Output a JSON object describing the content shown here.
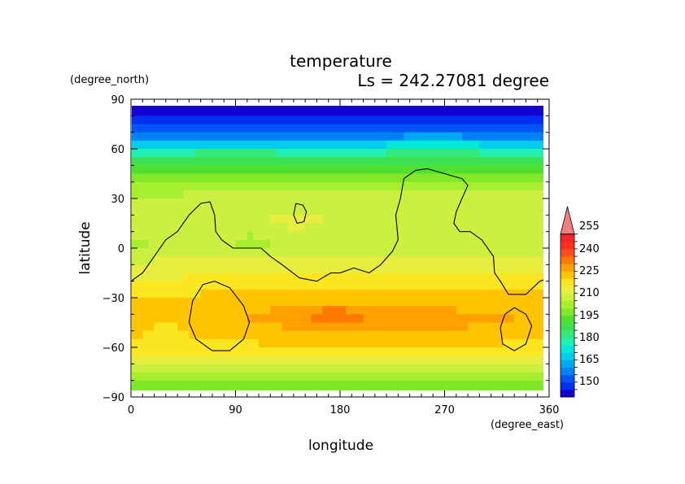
{
  "chart_data": {
    "type": "heatmap",
    "title": "temperature",
    "subtitle": "Ls = 242.27081 degree",
    "xlabel": "longitude",
    "ylabel": "latitude",
    "x_unit": "(degree_east)",
    "y_unit": "(degree_north)",
    "xlim": [
      0,
      360
    ],
    "ylim": [
      -90,
      90
    ],
    "x_ticks": [
      "0",
      "90",
      "180",
      "270",
      "360"
    ],
    "y_ticks": [
      "90",
      "60",
      "30",
      "0",
      "−30",
      "−60",
      "−90"
    ],
    "colorbar": {
      "levels": [
        145,
        150,
        155,
        160,
        165,
        170,
        175,
        180,
        185,
        190,
        195,
        200,
        205,
        210,
        215,
        220,
        225,
        230,
        235,
        240,
        245,
        250,
        255,
        260
      ],
      "labels": [
        "150",
        "165",
        "180",
        "195",
        "210",
        "225",
        "240",
        "255"
      ],
      "colors": [
        "#1600cf",
        "#0030f0",
        "#0055f5",
        "#0082f5",
        "#00a8f0",
        "#00ccee",
        "#00e8d8",
        "#22f0b0",
        "#34e87a",
        "#3ce050",
        "#50e030",
        "#80e828",
        "#a8ee30",
        "#ccf040",
        "#e8ee40",
        "#fbe620",
        "#ffc400",
        "#ffa000",
        "#ff7800",
        "#ff5020",
        "#ff3020",
        "#f02828",
        "#f08080"
      ]
    },
    "latitude_profile": {
      "lat": [
        85,
        80,
        75,
        70,
        65,
        60,
        55,
        50,
        45,
        40,
        35,
        30,
        25,
        20,
        15,
        10,
        5,
        0,
        -5,
        -10,
        -15,
        -20,
        -25,
        -30,
        -35,
        -40,
        -45,
        -50,
        -55,
        -60,
        -65,
        -70,
        -75,
        -80,
        -85
      ],
      "temperature": [
        148,
        150,
        153,
        158,
        166,
        178,
        188,
        196,
        202,
        206,
        209,
        211,
        213,
        214,
        214,
        213,
        212,
        212,
        214,
        217,
        219,
        221,
        224,
        226,
        228,
        230,
        229,
        228,
        226,
        223,
        219,
        214,
        210,
        205,
        203
      ]
    },
    "contour": {
      "level": 0,
      "paths": [
        [
          [
            0,
            -20
          ],
          [
            10,
            -15
          ],
          [
            20,
            -5
          ],
          [
            30,
            5
          ],
          [
            40,
            10
          ],
          [
            50,
            20
          ],
          [
            60,
            27
          ],
          [
            68,
            28
          ],
          [
            72,
            20
          ],
          [
            73,
            10
          ],
          [
            78,
            5
          ],
          [
            88,
            0
          ],
          [
            100,
            0
          ],
          [
            112,
            0
          ],
          [
            120,
            -5
          ],
          [
            130,
            -10
          ],
          [
            145,
            -18
          ],
          [
            160,
            -20
          ],
          [
            172,
            -15
          ],
          [
            180,
            -15
          ],
          [
            192,
            -12
          ],
          [
            205,
            -15
          ],
          [
            215,
            -10
          ],
          [
            225,
            -2
          ],
          [
            230,
            5
          ],
          [
            228,
            20
          ],
          [
            232,
            30
          ],
          [
            235,
            42
          ],
          [
            245,
            47
          ],
          [
            255,
            48
          ],
          [
            270,
            45
          ],
          [
            285,
            42
          ],
          [
            290,
            38
          ],
          [
            285,
            30
          ],
          [
            280,
            22
          ],
          [
            278,
            15
          ],
          [
            283,
            10
          ],
          [
            292,
            10
          ],
          [
            302,
            5
          ],
          [
            312,
            -5
          ],
          [
            313,
            -15
          ],
          [
            318,
            -20
          ],
          [
            325,
            -28
          ],
          [
            340,
            -28
          ],
          [
            352,
            -20
          ],
          [
            360,
            -18
          ]
        ],
        [
          [
            142,
            27
          ],
          [
            148,
            26
          ],
          [
            151,
            22
          ],
          [
            149,
            16
          ],
          [
            143,
            15
          ],
          [
            140,
            20
          ],
          [
            142,
            27
          ]
        ],
        [
          [
            72,
            -20
          ],
          [
            85,
            -24
          ],
          [
            97,
            -35
          ],
          [
            102,
            -45
          ],
          [
            97,
            -55
          ],
          [
            85,
            -62
          ],
          [
            70,
            -62
          ],
          [
            56,
            -55
          ],
          [
            50,
            -45
          ],
          [
            53,
            -32
          ],
          [
            62,
            -22
          ],
          [
            72,
            -20
          ]
        ],
        [
          [
            330,
            -36
          ],
          [
            340,
            -40
          ],
          [
            345,
            -47
          ],
          [
            340,
            -58
          ],
          [
            330,
            -62
          ],
          [
            320,
            -58
          ],
          [
            318,
            -48
          ],
          [
            322,
            -40
          ],
          [
            330,
            -36
          ]
        ]
      ]
    }
  }
}
